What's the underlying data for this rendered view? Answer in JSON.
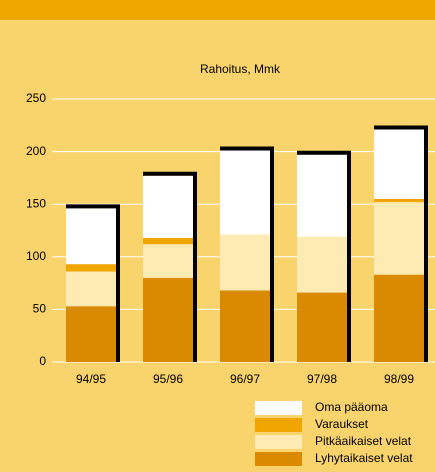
{
  "chart_data": {
    "type": "bar",
    "stacked": true,
    "title": "Rahoitus, Mmk",
    "categories": [
      "94/95",
      "95/96",
      "96/97",
      "97/98",
      "98/99"
    ],
    "series": [
      {
        "name": "Oma pääoma",
        "color": "#ffffff",
        "values": [
          53,
          59,
          80,
          78,
          66
        ]
      },
      {
        "name": "Varaukset",
        "color": "#f0a500",
        "values": [
          7,
          6,
          0,
          0,
          3
        ]
      },
      {
        "name": "Pitkäaikaiset velat",
        "color": "#fdebb3",
        "values": [
          33,
          32,
          53,
          53,
          69
        ]
      },
      {
        "name": "Lyhytaikaiset velat",
        "color": "#d98a00",
        "values": [
          53,
          80,
          68,
          66,
          83
        ]
      }
    ],
    "ylim": [
      0,
      250
    ],
    "yticks": [
      0,
      50,
      100,
      150,
      200,
      250
    ],
    "grid": true
  }
}
